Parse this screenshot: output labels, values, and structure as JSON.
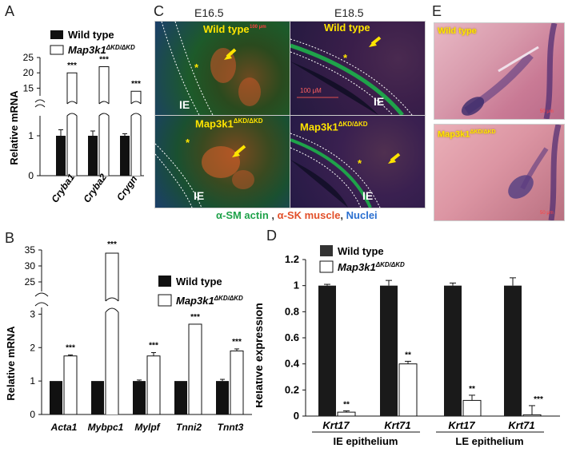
{
  "panels": {
    "A": {
      "letter": "A",
      "legend": [
        "Wild type",
        "Map3k1"
      ],
      "legend_sup": "ΔKD/ΔKD",
      "ylabel": "Relative mRNA",
      "yticks_low": [
        "0",
        "1"
      ],
      "yticks_high": [
        "15",
        "20",
        "25"
      ],
      "stars": "***",
      "categories": [
        "Cryba1",
        "Cryba2",
        "Crygn"
      ]
    },
    "B": {
      "letter": "B",
      "legend": [
        "Wild type",
        "Map3k1"
      ],
      "legend_sup": "ΔKD/ΔKD",
      "ylabel": "Relative mRNA",
      "yticks_low": [
        "0",
        "1",
        "2",
        "3"
      ],
      "yticks_high": [
        "25",
        "30",
        "35"
      ],
      "stars": "***",
      "categories": [
        "Acta1",
        "Mybpc1",
        "Mylpf",
        "Tnni2",
        "Tnnt3"
      ]
    },
    "C": {
      "letter": "C",
      "headers": [
        "E16.5",
        "E18.5"
      ],
      "labels": {
        "wt": "Wild type",
        "mut": "Map3k1",
        "mut_sup": "ΔKD/ΔKD",
        "ie": "IE",
        "star": "*",
        "scale_small": "100 μm",
        "scale_big": "100 μM"
      },
      "stain_legend": {
        "green": "α-SM actin",
        "sep": " , ",
        "red": "α-SK muscle",
        "comma": ", ",
        "blue": "Nuclei"
      },
      "colors": {
        "green": "#1fa24a",
        "red": "#e2502a",
        "blue": "#2a6fd0",
        "yellow": "#ffe400"
      }
    },
    "D": {
      "letter": "D",
      "legend": [
        "Wild type",
        "Map3k1"
      ],
      "legend_sup": "ΔKD/ΔKD",
      "ylabel": "Relative expression",
      "yticks": [
        "0",
        "0.2",
        "0.4",
        "0.6",
        "0.8",
        "1",
        "1.2"
      ],
      "categories": [
        "Krt17",
        "Krt71",
        "Krt17",
        "Krt71"
      ],
      "groups": [
        "IE epithelium",
        "LE epithelium"
      ],
      "stars": [
        "**",
        "**",
        "**",
        "***"
      ]
    },
    "E": {
      "letter": "E",
      "labels": {
        "wt": "Wild type",
        "mut": "Map3k1",
        "mut_sup": "ΔKD/ΔKD",
        "scale": "50 μm"
      }
    }
  },
  "chart_data": [
    {
      "id": "A",
      "type": "bar",
      "categories": [
        "Cryba1",
        "Cryba2",
        "Crygn"
      ],
      "series": [
        {
          "name": "Wild type",
          "values": [
            1.0,
            1.0,
            1.0
          ],
          "errors": [
            0.15,
            0.12,
            0.05
          ]
        },
        {
          "name": "Map3k1ΔKD/ΔKD",
          "values": [
            20,
            22,
            14
          ],
          "errors": [
            0,
            0,
            0
          ]
        }
      ],
      "ylabel": "Relative mRNA",
      "axis_break": true,
      "ylim": [
        0,
        25
      ],
      "legend_position": "top"
    },
    {
      "id": "B",
      "type": "bar",
      "categories": [
        "Acta1",
        "Mybpc1",
        "Mylpf",
        "Tnni2",
        "Tnnt3"
      ],
      "series": [
        {
          "name": "Wild type",
          "values": [
            1.0,
            1.0,
            1.0,
            1.0,
            1.0
          ],
          "errors": [
            0,
            0,
            0.03,
            0,
            0.05
          ]
        },
        {
          "name": "Map3k1ΔKD/ΔKD",
          "values": [
            1.75,
            34,
            1.75,
            2.7,
            1.9
          ],
          "errors": [
            0.03,
            0.1,
            0.1,
            0,
            0.06
          ]
        }
      ],
      "ylabel": "Relative mRNA",
      "axis_break": true,
      "ylim": [
        0,
        35
      ],
      "legend_position": "right"
    },
    {
      "id": "D",
      "type": "bar",
      "categories": [
        "Krt17",
        "Krt71",
        "Krt17",
        "Krt71"
      ],
      "groups": [
        "IE epithelium",
        "LE epithelium"
      ],
      "series": [
        {
          "name": "Wild type",
          "values": [
            1.0,
            1.0,
            1.0,
            1.0
          ],
          "errors": [
            0.01,
            0.04,
            0.02,
            0.06
          ]
        },
        {
          "name": "Map3k1ΔKD/ΔKD",
          "values": [
            0.03,
            0.4,
            0.12,
            0.01
          ],
          "errors": [
            0.01,
            0.02,
            0.04,
            0.07
          ]
        }
      ],
      "ylabel": "Relative expression",
      "ylim": [
        0,
        1.2
      ],
      "legend_position": "top"
    }
  ]
}
